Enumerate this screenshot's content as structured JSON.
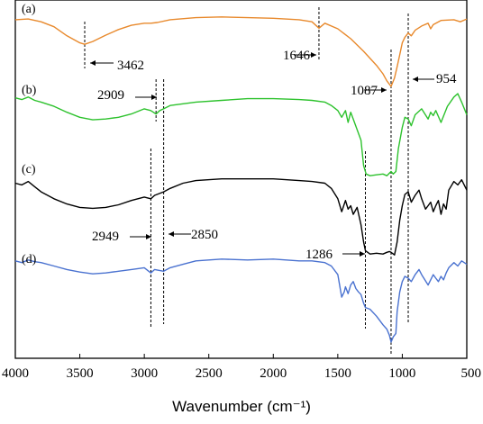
{
  "chart_data": {
    "type": "line",
    "xlabel": "Wavenumber (cm⁻¹)",
    "xlim": [
      4000,
      500
    ],
    "x_ticks": [
      "4000",
      "3500",
      "3000",
      "2500",
      "2000",
      "1500",
      "1000",
      "500"
    ],
    "y_ticks_shown": false,
    "panel_labels": [
      "(a)",
      "(b)",
      "(c)",
      "(d)"
    ],
    "series": [
      {
        "label": "(a)",
        "color": "#E8892C",
        "points": [
          [
            4000,
            0.95
          ],
          [
            3900,
            0.96
          ],
          [
            3800,
            0.92
          ],
          [
            3700,
            0.85
          ],
          [
            3600,
            0.72
          ],
          [
            3500,
            0.62
          ],
          [
            3462,
            0.6
          ],
          [
            3400,
            0.64
          ],
          [
            3300,
            0.73
          ],
          [
            3200,
            0.81
          ],
          [
            3100,
            0.87
          ],
          [
            3000,
            0.9
          ],
          [
            2950,
            0.9
          ],
          [
            2900,
            0.91
          ],
          [
            2800,
            0.95
          ],
          [
            2600,
            0.98
          ],
          [
            2400,
            0.99
          ],
          [
            2200,
            0.98
          ],
          [
            2000,
            0.97
          ],
          [
            1800,
            0.95
          ],
          [
            1700,
            0.92
          ],
          [
            1646,
            0.83
          ],
          [
            1600,
            0.9
          ],
          [
            1500,
            0.82
          ],
          [
            1400,
            0.68
          ],
          [
            1300,
            0.5
          ],
          [
            1200,
            0.3
          ],
          [
            1150,
            0.18
          ],
          [
            1120,
            0.08
          ],
          [
            1087,
            0.0
          ],
          [
            1060,
            0.12
          ],
          [
            1040,
            0.28
          ],
          [
            1020,
            0.45
          ],
          [
            1000,
            0.62
          ],
          [
            980,
            0.7
          ],
          [
            954,
            0.76
          ],
          [
            930,
            0.72
          ],
          [
            900,
            0.8
          ],
          [
            850,
            0.86
          ],
          [
            800,
            0.9
          ],
          [
            780,
            0.82
          ],
          [
            760,
            0.88
          ],
          [
            700,
            0.94
          ],
          [
            600,
            0.95
          ],
          [
            550,
            0.92
          ],
          [
            500,
            0.96
          ]
        ]
      },
      {
        "label": "(b)",
        "color": "#2DC22D",
        "points": [
          [
            4000,
            0.95
          ],
          [
            3950,
            0.93
          ],
          [
            3900,
            0.96
          ],
          [
            3850,
            0.92
          ],
          [
            3800,
            0.9
          ],
          [
            3700,
            0.85
          ],
          [
            3600,
            0.78
          ],
          [
            3500,
            0.72
          ],
          [
            3400,
            0.69
          ],
          [
            3300,
            0.7
          ],
          [
            3200,
            0.72
          ],
          [
            3100,
            0.76
          ],
          [
            3000,
            0.82
          ],
          [
            2950,
            0.8
          ],
          [
            2909,
            0.76
          ],
          [
            2880,
            0.8
          ],
          [
            2850,
            0.82
          ],
          [
            2800,
            0.86
          ],
          [
            2600,
            0.9
          ],
          [
            2400,
            0.92
          ],
          [
            2200,
            0.94
          ],
          [
            2000,
            0.94
          ],
          [
            1800,
            0.93
          ],
          [
            1700,
            0.92
          ],
          [
            1600,
            0.9
          ],
          [
            1550,
            0.86
          ],
          [
            1500,
            0.8
          ],
          [
            1470,
            0.72
          ],
          [
            1440,
            0.8
          ],
          [
            1420,
            0.66
          ],
          [
            1400,
            0.78
          ],
          [
            1380,
            0.7
          ],
          [
            1320,
            0.45
          ],
          [
            1300,
            0.15
          ],
          [
            1280,
            0.05
          ],
          [
            1250,
            0.03
          ],
          [
            1200,
            0.04
          ],
          [
            1150,
            0.05
          ],
          [
            1120,
            0.03
          ],
          [
            1100,
            0.06
          ],
          [
            1087,
            0.08
          ],
          [
            1070,
            0.05
          ],
          [
            1050,
            0.08
          ],
          [
            1030,
            0.35
          ],
          [
            1000,
            0.6
          ],
          [
            980,
            0.72
          ],
          [
            954,
            0.7
          ],
          [
            930,
            0.62
          ],
          [
            900,
            0.75
          ],
          [
            850,
            0.82
          ],
          [
            800,
            0.7
          ],
          [
            780,
            0.78
          ],
          [
            760,
            0.74
          ],
          [
            740,
            0.8
          ],
          [
            700,
            0.66
          ],
          [
            650,
            0.85
          ],
          [
            600,
            0.96
          ],
          [
            570,
            1.0
          ],
          [
            540,
            0.9
          ],
          [
            500,
            0.75
          ]
        ]
      },
      {
        "label": "(c)",
        "color": "#000000",
        "points": [
          [
            4000,
            0.88
          ],
          [
            3950,
            0.86
          ],
          [
            3900,
            0.9
          ],
          [
            3850,
            0.84
          ],
          [
            3800,
            0.78
          ],
          [
            3700,
            0.7
          ],
          [
            3600,
            0.64
          ],
          [
            3500,
            0.6
          ],
          [
            3400,
            0.59
          ],
          [
            3300,
            0.6
          ],
          [
            3200,
            0.63
          ],
          [
            3100,
            0.68
          ],
          [
            3000,
            0.72
          ],
          [
            2949,
            0.7
          ],
          [
            2920,
            0.74
          ],
          [
            2850,
            0.78
          ],
          [
            2800,
            0.82
          ],
          [
            2700,
            0.88
          ],
          [
            2600,
            0.91
          ],
          [
            2400,
            0.93
          ],
          [
            2200,
            0.93
          ],
          [
            2000,
            0.93
          ],
          [
            1800,
            0.91
          ],
          [
            1700,
            0.9
          ],
          [
            1600,
            0.88
          ],
          [
            1550,
            0.82
          ],
          [
            1500,
            0.7
          ],
          [
            1470,
            0.55
          ],
          [
            1440,
            0.68
          ],
          [
            1420,
            0.58
          ],
          [
            1400,
            0.62
          ],
          [
            1380,
            0.52
          ],
          [
            1350,
            0.6
          ],
          [
            1320,
            0.4
          ],
          [
            1300,
            0.2
          ],
          [
            1286,
            0.1
          ],
          [
            1250,
            0.06
          ],
          [
            1200,
            0.07
          ],
          [
            1150,
            0.06
          ],
          [
            1120,
            0.08
          ],
          [
            1100,
            0.09
          ],
          [
            1087,
            0.08
          ],
          [
            1060,
            0.05
          ],
          [
            1040,
            0.2
          ],
          [
            1020,
            0.45
          ],
          [
            1000,
            0.62
          ],
          [
            980,
            0.75
          ],
          [
            954,
            0.78
          ],
          [
            930,
            0.66
          ],
          [
            900,
            0.74
          ],
          [
            870,
            0.8
          ],
          [
            850,
            0.7
          ],
          [
            820,
            0.58
          ],
          [
            800,
            0.62
          ],
          [
            780,
            0.66
          ],
          [
            760,
            0.55
          ],
          [
            740,
            0.62
          ],
          [
            720,
            0.68
          ],
          [
            700,
            0.52
          ],
          [
            680,
            0.64
          ],
          [
            660,
            0.58
          ],
          [
            640,
            0.8
          ],
          [
            600,
            0.9
          ],
          [
            570,
            0.86
          ],
          [
            540,
            0.92
          ],
          [
            500,
            0.8
          ]
        ]
      },
      {
        "label": "(d)",
        "color": "#4A72D0",
        "points": [
          [
            4000,
            0.94
          ],
          [
            3950,
            0.92
          ],
          [
            3900,
            0.95
          ],
          [
            3850,
            0.93
          ],
          [
            3800,
            0.92
          ],
          [
            3700,
            0.88
          ],
          [
            3600,
            0.84
          ],
          [
            3500,
            0.81
          ],
          [
            3400,
            0.79
          ],
          [
            3300,
            0.8
          ],
          [
            3200,
            0.82
          ],
          [
            3100,
            0.84
          ],
          [
            3000,
            0.86
          ],
          [
            2949,
            0.8
          ],
          [
            2920,
            0.84
          ],
          [
            2850,
            0.82
          ],
          [
            2800,
            0.86
          ],
          [
            2700,
            0.9
          ],
          [
            2600,
            0.94
          ],
          [
            2400,
            0.96
          ],
          [
            2200,
            0.95
          ],
          [
            2000,
            0.96
          ],
          [
            1800,
            0.94
          ],
          [
            1700,
            0.94
          ],
          [
            1600,
            0.92
          ],
          [
            1550,
            0.88
          ],
          [
            1500,
            0.78
          ],
          [
            1470,
            0.52
          ],
          [
            1450,
            0.58
          ],
          [
            1440,
            0.64
          ],
          [
            1420,
            0.56
          ],
          [
            1400,
            0.66
          ],
          [
            1380,
            0.7
          ],
          [
            1360,
            0.62
          ],
          [
            1340,
            0.58
          ],
          [
            1320,
            0.55
          ],
          [
            1300,
            0.45
          ],
          [
            1286,
            0.4
          ],
          [
            1250,
            0.38
          ],
          [
            1200,
            0.3
          ],
          [
            1150,
            0.2
          ],
          [
            1120,
            0.15
          ],
          [
            1100,
            0.08
          ],
          [
            1087,
            0.0
          ],
          [
            1070,
            0.06
          ],
          [
            1050,
            0.1
          ],
          [
            1040,
            0.35
          ],
          [
            1020,
            0.58
          ],
          [
            1000,
            0.7
          ],
          [
            980,
            0.76
          ],
          [
            954,
            0.74
          ],
          [
            930,
            0.7
          ],
          [
            900,
            0.78
          ],
          [
            870,
            0.84
          ],
          [
            850,
            0.78
          ],
          [
            800,
            0.66
          ],
          [
            780,
            0.72
          ],
          [
            760,
            0.78
          ],
          [
            740,
            0.74
          ],
          [
            720,
            0.7
          ],
          [
            700,
            0.76
          ],
          [
            680,
            0.72
          ],
          [
            660,
            0.8
          ],
          [
            640,
            0.86
          ],
          [
            600,
            0.92
          ],
          [
            570,
            0.88
          ],
          [
            540,
            0.94
          ],
          [
            500,
            0.9
          ]
        ]
      }
    ],
    "reference_lines": [
      {
        "x": 3462,
        "label": "3462",
        "arrow": "left"
      },
      {
        "x": 1646,
        "label": "1646",
        "arrow": "right"
      },
      {
        "x": 1087,
        "label": "1087",
        "arrow": "right"
      },
      {
        "x": 954,
        "label": "954",
        "arrow": "left"
      },
      {
        "x": 2909,
        "label": "2909",
        "arrow": "right"
      },
      {
        "x": 2850,
        "label": "2850",
        "arrow": "left"
      },
      {
        "x": 2949,
        "label": "2949",
        "arrow": "right"
      },
      {
        "x": 1286,
        "label": "1286",
        "arrow": "right"
      }
    ]
  }
}
